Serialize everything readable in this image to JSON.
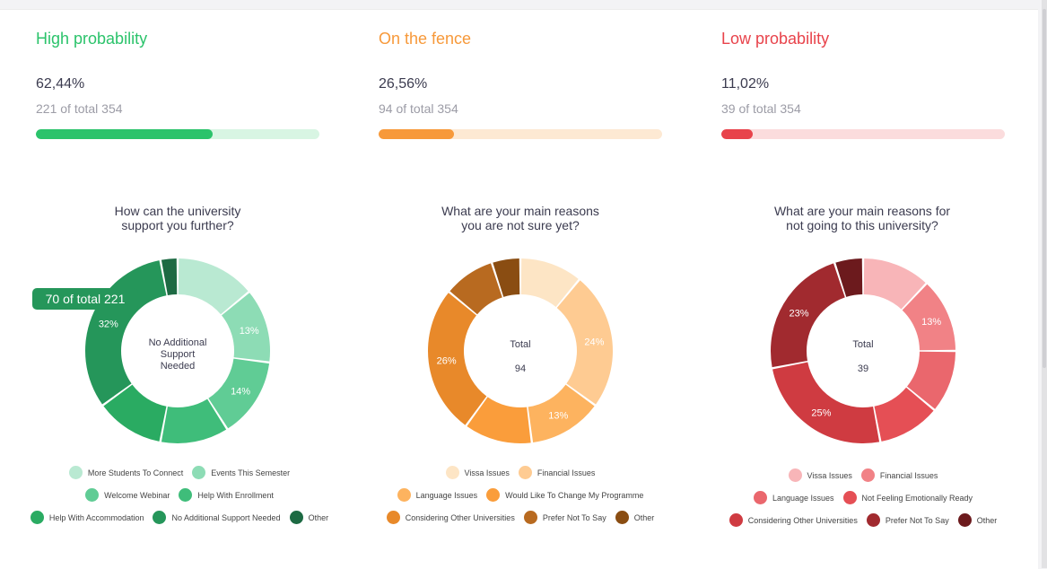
{
  "stats": [
    {
      "title": "High probability",
      "color": "#2bc36b",
      "track": "#d8f5e3",
      "percent_label": "62,44%",
      "fraction": 0.6244,
      "sub": "221 of total 354"
    },
    {
      "title": "On the fence",
      "color": "#f7993a",
      "track": "#fde9d3",
      "percent_label": "26,56%",
      "fraction": 0.2656,
      "sub": "94 of total 354"
    },
    {
      "title": "Low probability",
      "color": "#e8434b",
      "track": "#fbdcdd",
      "percent_label": "11,02%",
      "fraction": 0.1102,
      "sub": "39 of total 354"
    }
  ],
  "chart_data": [
    {
      "type": "pie",
      "title_lines": [
        "How can the university",
        "support you further?"
      ],
      "center_lines": [
        "No Additional",
        "Support",
        "Needed"
      ],
      "tooltip": "70 of total 221",
      "slices": [
        {
          "name": "More Students To Connect",
          "value": 14,
          "label": "",
          "color": "#b9e9d2"
        },
        {
          "name": "Events This Semester",
          "value": 13,
          "label": "13%",
          "color": "#8ddcb5"
        },
        {
          "name": "Welcome Webinar",
          "value": 14,
          "label": "14%",
          "color": "#60cc95"
        },
        {
          "name": "Help With Enrollment",
          "value": 12,
          "label": "",
          "color": "#3fbd7a"
        },
        {
          "name": "Help With Accommodation",
          "value": 12,
          "label": "",
          "color": "#2aab62"
        },
        {
          "name": "No Additional Support Needed",
          "value": 32,
          "label": "32%",
          "color": "#25965a"
        },
        {
          "name": "Other",
          "value": 3,
          "label": "",
          "color": "#1d6a43"
        }
      ],
      "legend_rows": [
        [
          0,
          1
        ],
        [
          2,
          3
        ],
        [
          4,
          5,
          6
        ]
      ]
    },
    {
      "type": "pie",
      "title_lines": [
        "What are your main reasons",
        "you are not sure yet?"
      ],
      "center_lines": [
        "Total",
        "94"
      ],
      "slices": [
        {
          "name": "Vissa Issues",
          "value": 11,
          "label": "",
          "color": "#fde5c5"
        },
        {
          "name": "Financial Issues",
          "value": 24,
          "label": "24%",
          "color": "#fecb92"
        },
        {
          "name": "Language Issues",
          "value": 13,
          "label": "13%",
          "color": "#fdb35f"
        },
        {
          "name": "Would Like To Change My Programme",
          "value": 12,
          "label": "",
          "color": "#fa9d3b"
        },
        {
          "name": "Considering Other Universities",
          "value": 26,
          "label": "26%",
          "color": "#e8892a"
        },
        {
          "name": "Prefer Not To Say",
          "value": 9,
          "label": "",
          "color": "#b86a20"
        },
        {
          "name": "Other",
          "value": 5,
          "label": "",
          "color": "#8a4d12"
        }
      ],
      "legend_rows": [
        [
          0,
          1
        ],
        [
          2,
          3
        ],
        [
          4,
          5,
          6
        ]
      ]
    },
    {
      "type": "pie",
      "title_lines": [
        "What are your main reasons for",
        "not going to this university?"
      ],
      "center_lines": [
        "Total",
        "39"
      ],
      "slices": [
        {
          "name": "Vissa Issues",
          "value": 12,
          "label": "",
          "color": "#f8b5b8"
        },
        {
          "name": "Financial Issues",
          "value": 13,
          "label": "13%",
          "color": "#f18286"
        },
        {
          "name": "Language Issues",
          "value": 11,
          "label": "",
          "color": "#ea676d"
        },
        {
          "name": "Not Feeling Emotionally Ready",
          "value": 11,
          "label": "",
          "color": "#e54f55"
        },
        {
          "name": "Considering Other Universities",
          "value": 25,
          "label": "25%",
          "color": "#cf3b41"
        },
        {
          "name": "Prefer Not To Say",
          "value": 23,
          "label": "23%",
          "color": "#a12a2f"
        },
        {
          "name": "Other",
          "value": 5,
          "label": "",
          "color": "#6c1a1d"
        }
      ],
      "legend_rows": [
        [
          0,
          1
        ],
        [
          2,
          3
        ],
        [
          4,
          5,
          6
        ]
      ]
    }
  ]
}
